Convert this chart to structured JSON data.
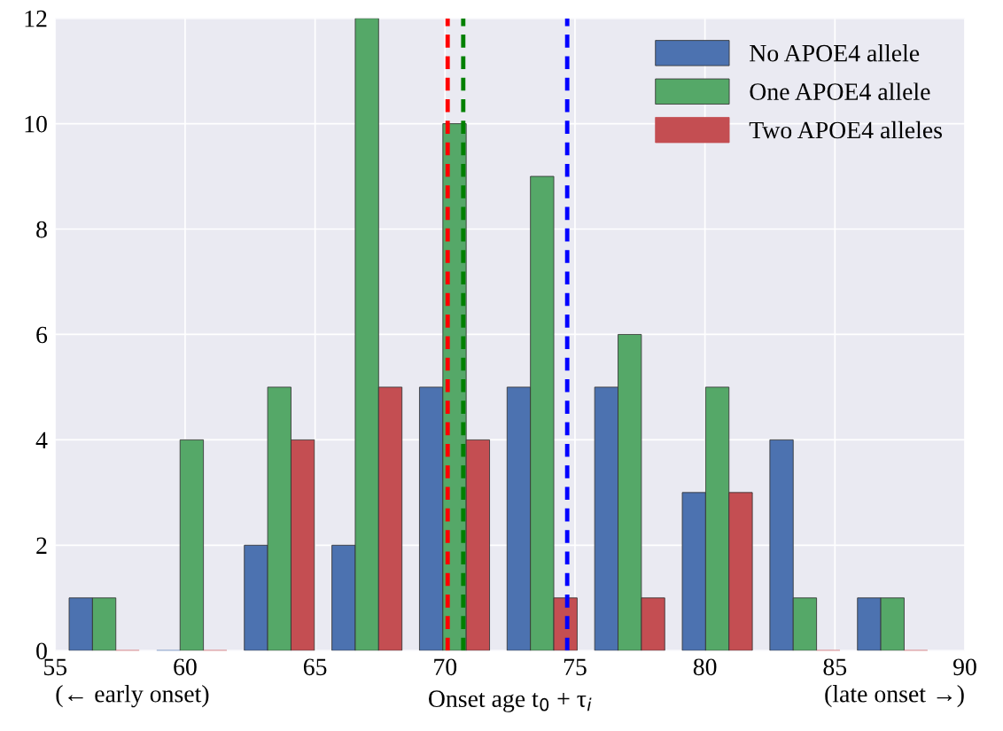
{
  "chart_data": {
    "type": "histogram",
    "xlabel": "Onset age t$_{0}$ + τ$_{i}$",
    "bins": [
      55.2,
      58.57,
      61.94,
      65.31,
      68.68,
      72.05,
      75.42,
      78.79,
      82.16,
      85.53,
      88.9
    ],
    "series": [
      {
        "name": "No APOE4 allele",
        "color": "#4c72b0",
        "values": [
          1,
          0,
          2,
          2,
          5,
          5,
          5,
          3,
          4,
          1
        ]
      },
      {
        "name": "One APOE4 allele",
        "color": "#55a868",
        "values": [
          1,
          4,
          5,
          12,
          10,
          9,
          6,
          5,
          1,
          1
        ]
      },
      {
        "name": "Two APOE4 alleles",
        "color": "#c44e52",
        "values": [
          0,
          0,
          4,
          5,
          4,
          1,
          1,
          3,
          0,
          0
        ]
      }
    ],
    "ref_lines": [
      {
        "axis": "x",
        "value": 74.7,
        "color": "#0000ff",
        "line_style": "dashed"
      },
      {
        "axis": "x",
        "value": 70.7,
        "color": "#008000",
        "line_style": "dashed"
      },
      {
        "axis": "x",
        "value": 70.1,
        "color": "#ff0000",
        "line_style": "dashed"
      }
    ],
    "annotations": [
      "(← early onset)",
      "(late onset →)"
    ],
    "xlim": [
      55,
      90
    ],
    "xticks": [
      55,
      60,
      65,
      70,
      75,
      80,
      85,
      90
    ],
    "ylim": [
      0,
      12
    ],
    "yticks": [
      0,
      2,
      4,
      6,
      8,
      10,
      12
    ],
    "grid": true,
    "legend": "top right"
  }
}
